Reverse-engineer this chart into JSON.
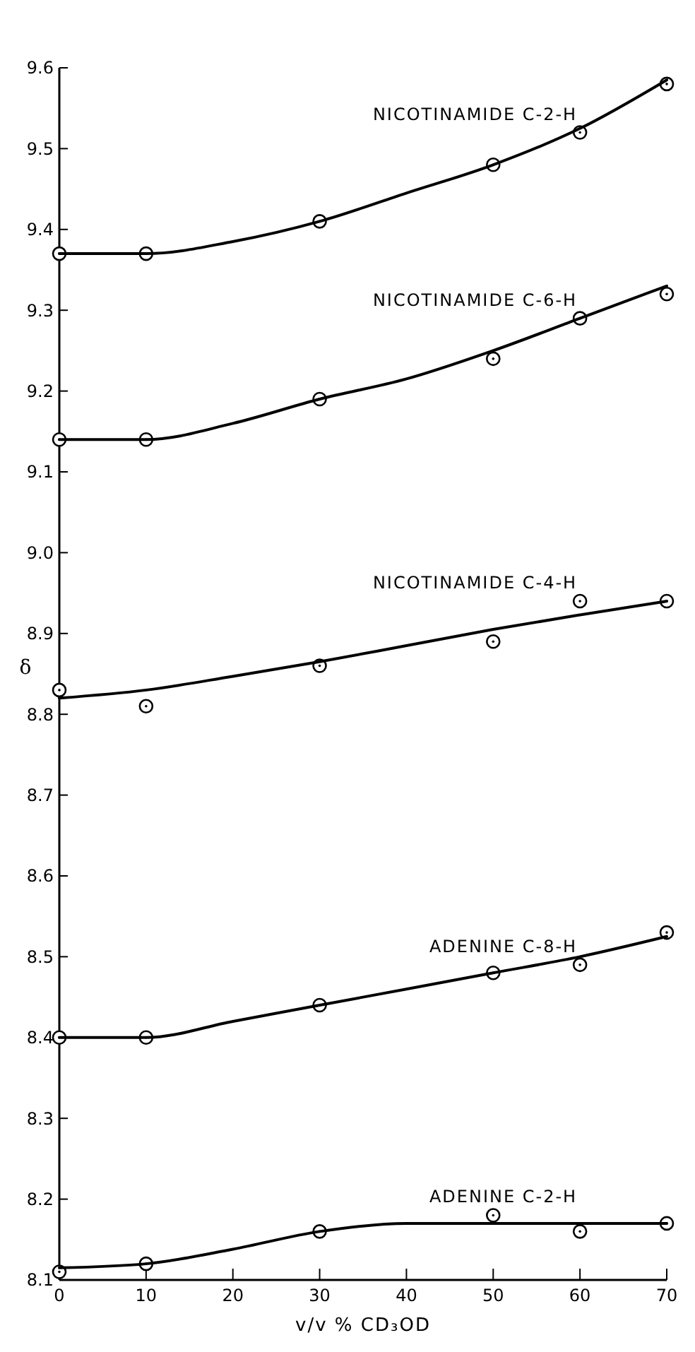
{
  "chart_data": {
    "type": "scatter",
    "xlabel": "v/v % CD₃OD",
    "ylabel": "δ",
    "xlim": [
      0,
      70
    ],
    "xticks": [
      0,
      10,
      20,
      30,
      40,
      50,
      60,
      70
    ],
    "ylim": [
      8.1,
      9.6
    ],
    "yticks": [
      8.1,
      8.2,
      8.3,
      8.4,
      8.5,
      8.6,
      8.7,
      8.8,
      8.9,
      {
        "value": 9,
        "label": "9.0"
      },
      9.1,
      9.2,
      9.3,
      9.4,
      9.5,
      9.6
    ],
    "grid": false,
    "x": [
      0,
      10,
      30,
      50,
      60,
      70
    ],
    "series": [
      {
        "name": "NICOTINAMIDE C-2-H",
        "color": "#000000",
        "marker": "circle",
        "values": [
          9.37,
          9.37,
          9.41,
          9.48,
          9.52,
          9.58
        ]
      },
      {
        "type": "line",
        "color": "#000000",
        "marker": "none",
        "line_style": "solid",
        "x": [
          0,
          10,
          20,
          30,
          40,
          50,
          60,
          70
        ],
        "values": [
          9.37,
          9.37,
          9.385,
          9.41,
          9.445,
          9.48,
          9.525,
          9.585
        ]
      },
      {
        "name": "NICOTINAMIDE C-6-H",
        "color": "#000000",
        "marker": "circle",
        "values": [
          9.14,
          9.14,
          9.19,
          9.24,
          9.29,
          9.32
        ]
      },
      {
        "type": "line",
        "color": "#000000",
        "marker": "none",
        "line_style": "solid",
        "x": [
          0,
          10,
          20,
          30,
          40,
          50,
          60,
          70
        ],
        "values": [
          9.14,
          9.14,
          9.16,
          9.19,
          9.215,
          9.25,
          9.29,
          9.33
        ]
      },
      {
        "name": "NICOTINAMIDE C-4-H",
        "color": "#000000",
        "marker": "circle",
        "values": [
          8.83,
          8.81,
          8.86,
          8.89,
          8.94,
          8.94
        ]
      },
      {
        "type": "line",
        "color": "#000000",
        "marker": "none",
        "line_style": "solid",
        "x": [
          0,
          10,
          20,
          30,
          40,
          50,
          60,
          70
        ],
        "values": [
          8.82,
          8.83,
          8.847,
          8.865,
          8.885,
          8.905,
          8.923,
          8.94
        ]
      },
      {
        "name": "ADENINE C-8-H",
        "color": "#000000",
        "marker": "circle",
        "values": [
          8.4,
          8.4,
          8.44,
          8.48,
          8.49,
          8.53
        ]
      },
      {
        "type": "line",
        "color": "#000000",
        "marker": "none",
        "line_style": "solid",
        "x": [
          0,
          10,
          20,
          30,
          40,
          50,
          60,
          70
        ],
        "values": [
          8.4,
          8.4,
          8.42,
          8.44,
          8.46,
          8.48,
          8.5,
          8.525
        ]
      },
      {
        "name": "ADENINE C-2-H",
        "color": "#000000",
        "marker": "circle",
        "values": [
          8.11,
          8.12,
          8.16,
          8.18,
          8.16,
          8.17
        ]
      },
      {
        "type": "line",
        "color": "#000000",
        "marker": "none",
        "line_style": "solid",
        "x": [
          0,
          10,
          20,
          30,
          40,
          50,
          60,
          70
        ],
        "values": [
          8.115,
          8.12,
          8.138,
          8.16,
          8.17,
          8.17,
          8.17,
          8.17
        ]
      }
    ]
  }
}
